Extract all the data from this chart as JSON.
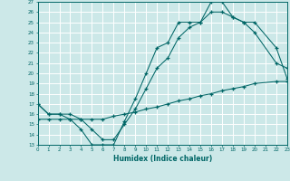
{
  "xlabel": "Humidex (Indice chaleur)",
  "bg_color": "#cce8e8",
  "grid_color": "#ffffff",
  "line_color": "#006666",
  "ylim": [
    13,
    27
  ],
  "xlim": [
    0,
    23
  ],
  "yticks": [
    13,
    14,
    15,
    16,
    17,
    18,
    19,
    20,
    21,
    22,
    23,
    24,
    25,
    26,
    27
  ],
  "xticks": [
    0,
    1,
    2,
    3,
    4,
    5,
    6,
    7,
    8,
    9,
    10,
    11,
    12,
    13,
    14,
    15,
    16,
    17,
    18,
    19,
    20,
    21,
    22,
    23
  ],
  "line1_x": [
    0,
    1,
    2,
    3,
    4,
    5,
    6,
    7,
    8,
    9,
    10,
    11,
    12,
    13,
    14,
    15,
    16,
    17,
    18,
    19,
    20,
    22,
    23
  ],
  "line1_y": [
    17.0,
    16.0,
    16.0,
    15.5,
    14.5,
    13.0,
    13.0,
    13.0,
    15.3,
    17.5,
    20.0,
    22.5,
    23.0,
    25.0,
    25.0,
    25.0,
    27.0,
    27.0,
    25.5,
    25.0,
    24.0,
    21.0,
    20.5
  ],
  "line2_x": [
    0,
    1,
    2,
    3,
    4,
    5,
    6,
    7,
    8,
    9,
    10,
    11,
    12,
    13,
    14,
    15,
    16,
    17,
    18,
    19,
    20,
    22,
    23
  ],
  "line2_y": [
    17.0,
    16.0,
    16.0,
    16.0,
    15.5,
    14.5,
    13.5,
    13.5,
    15.0,
    16.5,
    18.5,
    20.5,
    21.5,
    23.5,
    24.5,
    25.0,
    26.0,
    26.0,
    25.5,
    25.0,
    25.0,
    22.5,
    19.5
  ],
  "line3_x": [
    0,
    1,
    2,
    3,
    4,
    5,
    6,
    7,
    8,
    9,
    10,
    11,
    12,
    13,
    14,
    15,
    16,
    17,
    18,
    19,
    20,
    22,
    23
  ],
  "line3_y": [
    15.5,
    15.5,
    15.5,
    15.5,
    15.5,
    15.5,
    15.5,
    15.8,
    16.0,
    16.2,
    16.5,
    16.7,
    17.0,
    17.3,
    17.5,
    17.8,
    18.0,
    18.3,
    18.5,
    18.7,
    19.0,
    19.2,
    19.2
  ]
}
